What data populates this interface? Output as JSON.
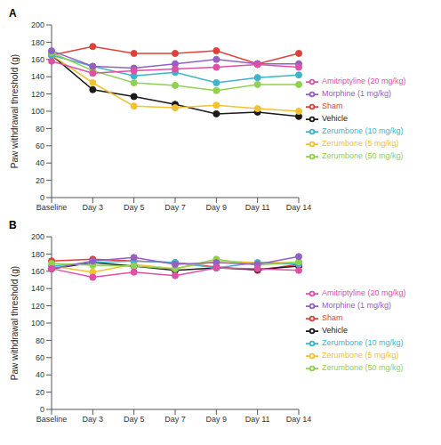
{
  "chart_data": [
    {
      "type": "line",
      "title": "A",
      "y_label": "Paw withdrawal threshold (g)",
      "categories": [
        "Baseline",
        "Day 3",
        "Day 5",
        "Day 7",
        "Day 9",
        "Day 11",
        "Day 14"
      ],
      "ylim": [
        0,
        200
      ],
      "yticks": [
        0,
        20,
        40,
        60,
        80,
        100,
        120,
        140,
        160,
        180,
        200
      ],
      "grid": false,
      "legend": "right",
      "marker": "circle",
      "series": [
        {
          "name": "Sham",
          "color": "#e0403a",
          "values": [
            165,
            175,
            167,
            167,
            170,
            155,
            167
          ]
        },
        {
          "name": "Vehicle",
          "color": "#1a1a1a",
          "values": [
            165,
            125,
            117,
            108,
            97,
            99,
            94
          ]
        },
        {
          "name": "Zerumbone (5 mg/kg)",
          "color": "#f2c232",
          "values": [
            165,
            133,
            106,
            104,
            107,
            103,
            100
          ]
        },
        {
          "name": "Zerumbone (10 mg/kg)",
          "color": "#3fb3c9",
          "values": [
            165,
            152,
            141,
            145,
            133,
            139,
            142
          ]
        },
        {
          "name": "Zerumbone (50 mg/kg)",
          "color": "#8fd150",
          "values": [
            168,
            147,
            133,
            130,
            124,
            131,
            131
          ]
        },
        {
          "name": "Morphine (1 mg/kg)",
          "color": "#9360c4",
          "values": [
            170,
            152,
            150,
            155,
            160,
            155,
            155
          ]
        },
        {
          "name": "Amitriptyline (20 mg/kg)",
          "color": "#e04fa6",
          "values": [
            158,
            144,
            147,
            149,
            151,
            154,
            151
          ]
        }
      ]
    },
    {
      "type": "line",
      "title": "B",
      "y_label": "Paw withdrawal threshold (g)",
      "categories": [
        "Baseline",
        "Day 3",
        "Day 5",
        "Day 7",
        "Day 9",
        "Day 11",
        "Day 14"
      ],
      "ylim": [
        0,
        200
      ],
      "yticks": [
        0,
        20,
        40,
        60,
        80,
        100,
        120,
        140,
        160,
        180,
        200
      ],
      "grid": false,
      "legend": "right",
      "marker": "circle",
      "series": [
        {
          "name": "Sham",
          "color": "#e0403a",
          "values": [
            172,
            174,
            172,
            170,
            165,
            161,
            168
          ]
        },
        {
          "name": "Vehicle",
          "color": "#1a1a1a",
          "values": [
            163,
            170,
            166,
            161,
            164,
            162,
            166
          ]
        },
        {
          "name": "Zerumbone (5 mg/kg)",
          "color": "#f2c232",
          "values": [
            166,
            159,
            168,
            163,
            172,
            170,
            170
          ]
        },
        {
          "name": "Zerumbone (10 mg/kg)",
          "color": "#3fb3c9",
          "values": [
            166,
            170,
            172,
            170,
            164,
            170,
            168
          ]
        },
        {
          "name": "Zerumbone (50 mg/kg)",
          "color": "#8fd150",
          "values": [
            169,
            167,
            166,
            163,
            174,
            167,
            171
          ]
        },
        {
          "name": "Morphine (1 mg/kg)",
          "color": "#9360c4",
          "values": [
            163,
            172,
            176,
            168,
            170,
            168,
            177
          ]
        },
        {
          "name": "Amitriptyline (20 mg/kg)",
          "color": "#e04fa6",
          "values": [
            163,
            153,
            159,
            155,
            164,
            163,
            161
          ]
        }
      ]
    }
  ]
}
